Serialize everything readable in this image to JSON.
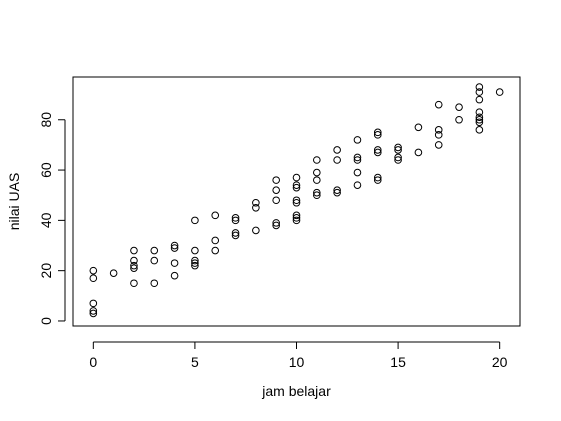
{
  "chart_data": {
    "type": "scatter",
    "title": "",
    "xlabel": "jam belajar",
    "ylabel": "nilai UAS",
    "xlim": [
      -1,
      21
    ],
    "ylim": [
      -2,
      97
    ],
    "xticks": [
      0,
      5,
      10,
      15,
      20
    ],
    "yticks": [
      0,
      20,
      40,
      60,
      80
    ],
    "grid": false,
    "legend": "none",
    "marker": "open-circle",
    "point_color": "#000000",
    "points": [
      [
        0,
        20
      ],
      [
        0,
        17
      ],
      [
        0,
        7
      ],
      [
        0,
        4
      ],
      [
        0,
        3
      ],
      [
        1,
        19
      ],
      [
        2,
        28
      ],
      [
        2,
        24
      ],
      [
        2,
        22
      ],
      [
        2,
        21
      ],
      [
        2,
        15
      ],
      [
        3,
        28
      ],
      [
        3,
        24
      ],
      [
        3,
        15
      ],
      [
        4,
        30
      ],
      [
        4,
        29
      ],
      [
        4,
        23
      ],
      [
        4,
        18
      ],
      [
        5,
        40
      ],
      [
        5,
        28
      ],
      [
        5,
        24
      ],
      [
        5,
        23
      ],
      [
        5,
        22
      ],
      [
        6,
        42
      ],
      [
        6,
        32
      ],
      [
        6,
        28
      ],
      [
        7,
        41
      ],
      [
        7,
        40
      ],
      [
        7,
        35
      ],
      [
        7,
        34
      ],
      [
        8,
        47
      ],
      [
        8,
        45
      ],
      [
        8,
        36
      ],
      [
        9,
        56
      ],
      [
        9,
        52
      ],
      [
        9,
        48
      ],
      [
        9,
        39
      ],
      [
        9,
        38
      ],
      [
        10,
        57
      ],
      [
        10,
        54
      ],
      [
        10,
        53
      ],
      [
        10,
        48
      ],
      [
        10,
        47
      ],
      [
        10,
        42
      ],
      [
        10,
        41
      ],
      [
        10,
        40
      ],
      [
        11,
        64
      ],
      [
        11,
        59
      ],
      [
        11,
        56
      ],
      [
        11,
        51
      ],
      [
        11,
        50
      ],
      [
        12,
        68
      ],
      [
        12,
        64
      ],
      [
        12,
        52
      ],
      [
        12,
        51
      ],
      [
        13,
        72
      ],
      [
        13,
        65
      ],
      [
        13,
        64
      ],
      [
        13,
        59
      ],
      [
        13,
        54
      ],
      [
        14,
        75
      ],
      [
        14,
        74
      ],
      [
        14,
        68
      ],
      [
        14,
        67
      ],
      [
        14,
        57
      ],
      [
        14,
        56
      ],
      [
        15,
        69
      ],
      [
        15,
        68
      ],
      [
        15,
        65
      ],
      [
        15,
        64
      ],
      [
        16,
        77
      ],
      [
        16,
        67
      ],
      [
        17,
        86
      ],
      [
        17,
        76
      ],
      [
        17,
        74
      ],
      [
        17,
        70
      ],
      [
        18,
        85
      ],
      [
        18,
        80
      ],
      [
        19,
        93
      ],
      [
        19,
        91
      ],
      [
        19,
        88
      ],
      [
        19,
        83
      ],
      [
        19,
        81
      ],
      [
        19,
        80
      ],
      [
        19,
        79
      ],
      [
        19,
        76
      ],
      [
        20,
        91
      ]
    ]
  }
}
